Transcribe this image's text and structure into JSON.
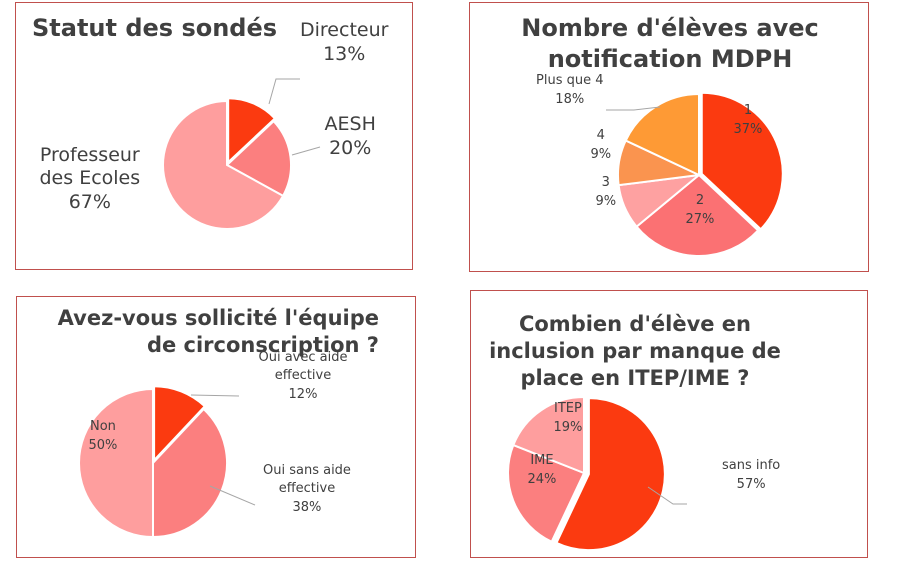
{
  "charts": [
    {
      "title": "Statut des sondés"
    },
    {
      "title": "Nombre d'élèves avec\nnotification MDPH"
    },
    {
      "title": "Avez-vous sollicité l'équipe\nde circonscription ?"
    },
    {
      "title": "Combien d'élève en\ninclusion par manque de\nplace en ITEP/IME ?"
    }
  ],
  "chart_data": [
    {
      "type": "pie",
      "title": "Statut des sondés",
      "slices": [
        {
          "label": "Directeur",
          "value": 13,
          "display": "13%",
          "color": "#fb3a10"
        },
        {
          "label": "AESH",
          "value": 20,
          "display": "20%",
          "color": "#fb7f7f"
        },
        {
          "label": "Professeur des Ecoles",
          "label_lines": [
            "Professeur",
            "des Ecoles"
          ],
          "value": 67,
          "display": "67%",
          "color": "#fe9e9e"
        }
      ]
    },
    {
      "type": "pie",
      "title": "Nombre d'élèves avec notification MDPH",
      "slices": [
        {
          "label": "1",
          "value": 37,
          "display": "37%",
          "color": "#fb3a10"
        },
        {
          "label": "2",
          "value": 27,
          "display": "27%",
          "color": "#fb7173"
        },
        {
          "label": "3",
          "value": 9,
          "display": "9%",
          "color": "#fea1a1"
        },
        {
          "label": "4",
          "value": 9,
          "display": "9%",
          "color": "#fa944f"
        },
        {
          "label": "Plus que 4",
          "value": 18,
          "display": "18%",
          "color": "#fe9a35"
        }
      ]
    },
    {
      "type": "pie",
      "title": "Avez-vous sollicité l'équipe de circonscription ?",
      "slices": [
        {
          "label": "Oui avec aide effective",
          "label_lines": [
            "Oui avec aide",
            "effective"
          ],
          "value": 12,
          "display": "12%",
          "color": "#fb3a10"
        },
        {
          "label": "Oui sans aide effective",
          "label_lines": [
            "Oui sans aide",
            "effective"
          ],
          "value": 38,
          "display": "38%",
          "color": "#fb7f7f"
        },
        {
          "label": "Non",
          "value": 50,
          "display": "50%",
          "color": "#fe9e9e"
        }
      ]
    },
    {
      "type": "pie",
      "title": "Combien d'élève en inclusion par manque de place en ITEP/IME ?",
      "slices": [
        {
          "label": "sans info",
          "value": 57,
          "display": "57%",
          "color": "#fb3a10"
        },
        {
          "label": "IME",
          "value": 24,
          "display": "24%",
          "color": "#fb7f7f"
        },
        {
          "label": "ITEP",
          "value": 19,
          "display": "19%",
          "color": "#fe9e9e"
        }
      ]
    }
  ]
}
